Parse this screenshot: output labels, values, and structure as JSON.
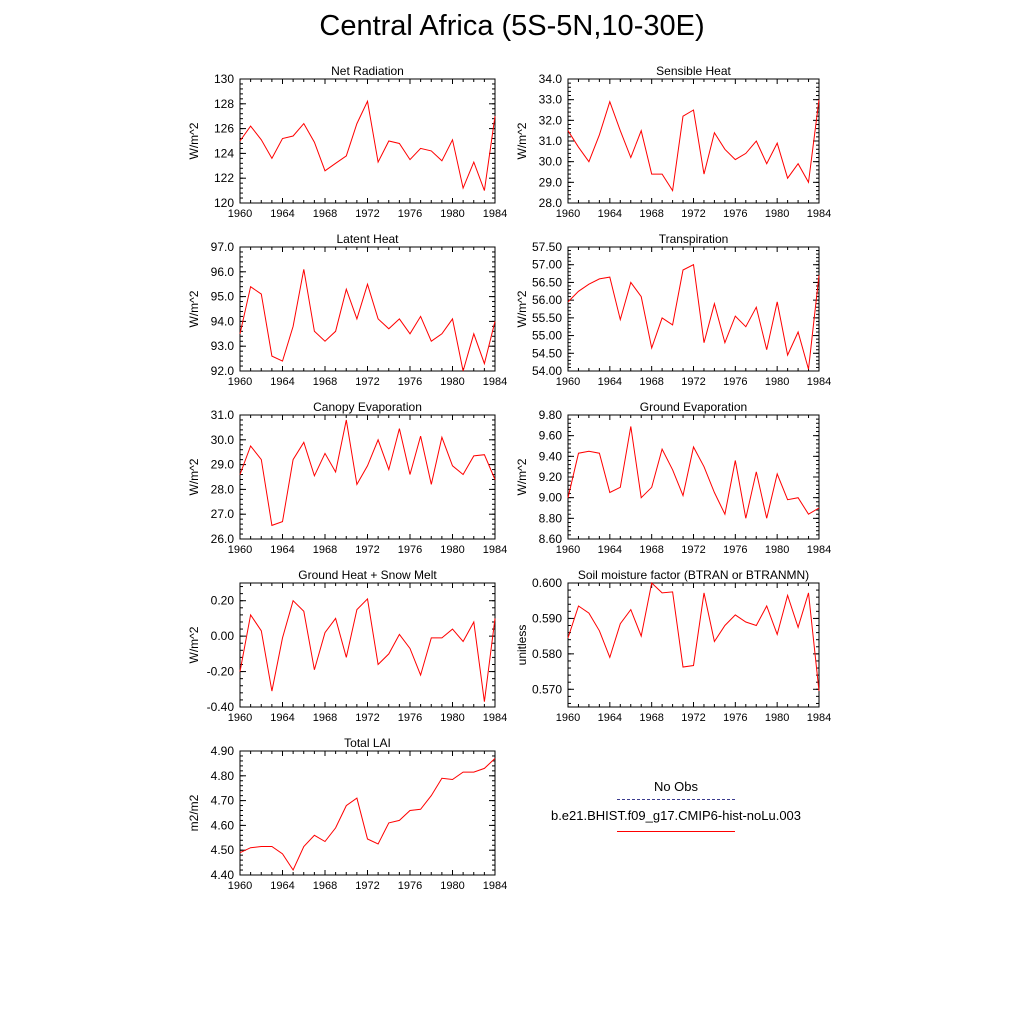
{
  "title": "Central Africa (5S-5N,10-30E)",
  "legend": {
    "obs_label": "No Obs",
    "model_label": "b.e21.BHIST.f09_g17.CMIP6-hist-noLu.003",
    "obs_color": "#3b3b8f",
    "model_color": "#ff0000"
  },
  "line_color": "#ff0000",
  "chart_data": [
    {
      "type": "line",
      "title": "Net Radiation",
      "ylabel": "W/m^2",
      "xlim": [
        1960,
        1984
      ],
      "ylim": [
        120,
        130
      ],
      "xticks": [
        "1960",
        "1964",
        "1968",
        "1972",
        "1976",
        "1980",
        "1984"
      ],
      "yticks": [
        "120",
        "122",
        "124",
        "126",
        "128",
        "130"
      ],
      "x": [
        1960,
        1961,
        1962,
        1963,
        1964,
        1965,
        1966,
        1967,
        1968,
        1969,
        1970,
        1971,
        1972,
        1973,
        1974,
        1975,
        1976,
        1977,
        1978,
        1979,
        1980,
        1981,
        1982,
        1983,
        1984
      ],
      "y": [
        125.0,
        126.2,
        125.1,
        123.6,
        125.2,
        125.4,
        126.4,
        124.9,
        122.6,
        123.2,
        123.8,
        126.4,
        128.2,
        123.3,
        125.0,
        124.8,
        123.5,
        124.4,
        124.2,
        123.4,
        125.1,
        121.2,
        123.3,
        121.0,
        127.0
      ]
    },
    {
      "type": "line",
      "title": "Sensible Heat",
      "ylabel": "W/m^2",
      "xlim": [
        1960,
        1984
      ],
      "ylim": [
        28.0,
        34.0
      ],
      "xticks": [
        "1960",
        "1964",
        "1968",
        "1972",
        "1976",
        "1980",
        "1984"
      ],
      "yticks": [
        "28.0",
        "29.0",
        "30.0",
        "31.0",
        "32.0",
        "33.0",
        "34.0"
      ],
      "x": [
        1960,
        1961,
        1962,
        1963,
        1964,
        1965,
        1966,
        1967,
        1968,
        1969,
        1970,
        1971,
        1972,
        1973,
        1974,
        1975,
        1976,
        1977,
        1978,
        1979,
        1980,
        1981,
        1982,
        1983,
        1984
      ],
      "y": [
        31.5,
        30.7,
        30.0,
        31.3,
        32.9,
        31.5,
        30.2,
        31.5,
        29.4,
        29.4,
        28.6,
        32.2,
        32.5,
        29.4,
        31.4,
        30.6,
        30.1,
        30.4,
        31.0,
        29.9,
        30.9,
        29.2,
        29.9,
        29.0,
        33.0
      ]
    },
    {
      "type": "line",
      "title": "Latent Heat",
      "ylabel": "W/m^2",
      "xlim": [
        1960,
        1984
      ],
      "ylim": [
        92.0,
        97.0
      ],
      "xticks": [
        "1960",
        "1964",
        "1968",
        "1972",
        "1976",
        "1980",
        "1984"
      ],
      "yticks": [
        "92.0",
        "93.0",
        "94.0",
        "95.0",
        "96.0",
        "97.0"
      ],
      "x": [
        1960,
        1961,
        1962,
        1963,
        1964,
        1965,
        1966,
        1967,
        1968,
        1969,
        1970,
        1971,
        1972,
        1973,
        1974,
        1975,
        1976,
        1977,
        1978,
        1979,
        1980,
        1981,
        1982,
        1983,
        1984
      ],
      "y": [
        93.5,
        95.4,
        95.1,
        92.6,
        92.4,
        93.8,
        96.1,
        93.6,
        93.2,
        93.6,
        95.3,
        94.1,
        95.5,
        94.1,
        93.7,
        94.1,
        93.5,
        94.2,
        93.2,
        93.5,
        94.1,
        92.0,
        93.5,
        92.3,
        94.0
      ]
    },
    {
      "type": "line",
      "title": "Transpiration",
      "ylabel": "W/m^2",
      "xlim": [
        1960,
        1984
      ],
      "ylim": [
        54.0,
        57.5
      ],
      "xticks": [
        "1960",
        "1964",
        "1968",
        "1972",
        "1976",
        "1980",
        "1984"
      ],
      "yticks": [
        "54.00",
        "54.50",
        "55.00",
        "55.50",
        "56.00",
        "56.50",
        "57.00",
        "57.50"
      ],
      "x": [
        1960,
        1961,
        1962,
        1963,
        1964,
        1965,
        1966,
        1967,
        1968,
        1969,
        1970,
        1971,
        1972,
        1973,
        1974,
        1975,
        1976,
        1977,
        1978,
        1979,
        1980,
        1981,
        1982,
        1983,
        1984
      ],
      "y": [
        55.95,
        56.25,
        56.45,
        56.6,
        56.65,
        55.45,
        56.5,
        56.1,
        54.65,
        55.5,
        55.3,
        56.85,
        57.0,
        54.8,
        55.9,
        54.8,
        55.55,
        55.25,
        55.8,
        54.6,
        55.95,
        54.45,
        55.1,
        54.05,
        56.7
      ]
    },
    {
      "type": "line",
      "title": "Canopy Evaporation",
      "ylabel": "W/m^2",
      "xlim": [
        1960,
        1984
      ],
      "ylim": [
        26.0,
        31.0
      ],
      "xticks": [
        "1960",
        "1964",
        "1968",
        "1972",
        "1976",
        "1980",
        "1984"
      ],
      "yticks": [
        "26.0",
        "27.0",
        "28.0",
        "29.0",
        "30.0",
        "31.0"
      ],
      "x": [
        1960,
        1961,
        1962,
        1963,
        1964,
        1965,
        1966,
        1967,
        1968,
        1969,
        1970,
        1971,
        1972,
        1973,
        1974,
        1975,
        1976,
        1977,
        1978,
        1979,
        1980,
        1981,
        1982,
        1983,
        1984
      ],
      "y": [
        28.6,
        29.75,
        29.2,
        26.55,
        26.7,
        29.2,
        29.9,
        28.55,
        29.45,
        28.7,
        30.8,
        28.2,
        28.95,
        30.0,
        28.8,
        30.45,
        28.6,
        30.15,
        28.2,
        30.1,
        28.95,
        28.6,
        29.35,
        29.4,
        28.4
      ]
    },
    {
      "type": "line",
      "title": "Ground Evaporation",
      "ylabel": "W/m^2",
      "xlim": [
        1960,
        1984
      ],
      "ylim": [
        8.6,
        9.8
      ],
      "xticks": [
        "1960",
        "1964",
        "1968",
        "1972",
        "1976",
        "1980",
        "1984"
      ],
      "yticks": [
        "8.60",
        "8.80",
        "9.00",
        "9.20",
        "9.40",
        "9.60",
        "9.80"
      ],
      "x": [
        1960,
        1961,
        1962,
        1963,
        1964,
        1965,
        1966,
        1967,
        1968,
        1969,
        1970,
        1971,
        1972,
        1973,
        1974,
        1975,
        1976,
        1977,
        1978,
        1979,
        1980,
        1981,
        1982,
        1983,
        1984
      ],
      "y": [
        9.0,
        9.43,
        9.45,
        9.43,
        9.05,
        9.1,
        9.69,
        9.0,
        9.1,
        9.47,
        9.27,
        9.02,
        9.49,
        9.3,
        9.05,
        8.84,
        9.36,
        8.8,
        9.25,
        8.8,
        9.23,
        8.98,
        9.0,
        8.84,
        8.9
      ]
    },
    {
      "type": "line",
      "title": "Ground Heat + Snow Melt",
      "ylabel": "W/m^2",
      "xlim": [
        1960,
        1984
      ],
      "ylim": [
        -0.4,
        0.3
      ],
      "xticks": [
        "1960",
        "1964",
        "1968",
        "1972",
        "1976",
        "1980",
        "1984"
      ],
      "yticks": [
        "-0.40",
        "-0.20",
        "0.00",
        "0.20"
      ],
      "ytick_values": [
        -0.4,
        -0.2,
        0.0,
        0.2
      ],
      "x": [
        1960,
        1961,
        1962,
        1963,
        1964,
        1965,
        1966,
        1967,
        1968,
        1969,
        1970,
        1971,
        1972,
        1973,
        1974,
        1975,
        1976,
        1977,
        1978,
        1979,
        1980,
        1981,
        1982,
        1983,
        1984
      ],
      "y": [
        -0.2,
        0.12,
        0.03,
        -0.31,
        -0.01,
        0.2,
        0.14,
        -0.19,
        0.02,
        0.1,
        -0.12,
        0.15,
        0.21,
        -0.16,
        -0.1,
        0.01,
        -0.07,
        -0.22,
        -0.01,
        -0.01,
        0.04,
        -0.03,
        0.08,
        -0.37,
        0.1
      ]
    },
    {
      "type": "line",
      "title": "Soil moisture factor (BTRAN or BTRANMN)",
      "ylabel": "unitless",
      "xlim": [
        1960,
        1984
      ],
      "ylim": [
        0.565,
        0.6
      ],
      "xticks": [
        "1960",
        "1964",
        "1968",
        "1972",
        "1976",
        "1980",
        "1984"
      ],
      "yticks": [
        "0.570",
        "0.580",
        "0.590",
        "0.600"
      ],
      "ytick_values": [
        0.57,
        0.58,
        0.59,
        0.6
      ],
      "x": [
        1960,
        1961,
        1962,
        1963,
        1964,
        1965,
        1966,
        1967,
        1968,
        1969,
        1970,
        1971,
        1972,
        1973,
        1974,
        1975,
        1976,
        1977,
        1978,
        1979,
        1980,
        1981,
        1982,
        1983,
        1984
      ],
      "y": [
        0.5845,
        0.5935,
        0.5915,
        0.5865,
        0.579,
        0.5885,
        0.5925,
        0.585,
        0.6,
        0.5972,
        0.5975,
        0.5763,
        0.5767,
        0.5972,
        0.5835,
        0.588,
        0.591,
        0.589,
        0.588,
        0.5935,
        0.5855,
        0.5965,
        0.5875,
        0.5972,
        0.5695
      ]
    },
    {
      "type": "line",
      "title": "Total LAI",
      "ylabel": "m2/m2",
      "xlim": [
        1960,
        1984
      ],
      "ylim": [
        4.4,
        4.9
      ],
      "xticks": [
        "1960",
        "1964",
        "1968",
        "1972",
        "1976",
        "1980",
        "1984"
      ],
      "yticks": [
        "4.40",
        "4.50",
        "4.60",
        "4.70",
        "4.80",
        "4.90"
      ],
      "x": [
        1960,
        1961,
        1962,
        1963,
        1964,
        1965,
        1966,
        1967,
        1968,
        1969,
        1970,
        1971,
        1972,
        1973,
        1974,
        1975,
        1976,
        1977,
        1978,
        1979,
        1980,
        1981,
        1982,
        1983,
        1984
      ],
      "y": [
        4.49,
        4.51,
        4.515,
        4.515,
        4.485,
        4.42,
        4.515,
        4.56,
        4.535,
        4.59,
        4.68,
        4.71,
        4.545,
        4.525,
        4.61,
        4.62,
        4.66,
        4.665,
        4.72,
        4.79,
        4.785,
        4.815,
        4.815,
        4.83,
        4.87
      ]
    }
  ]
}
